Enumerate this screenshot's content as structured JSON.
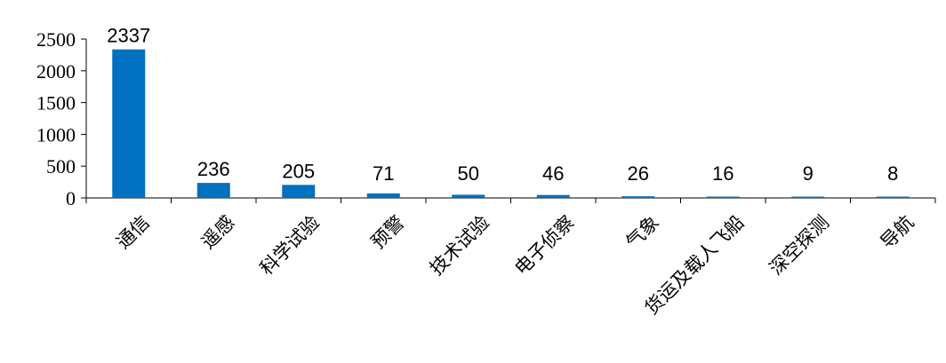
{
  "chart_data": {
    "type": "bar",
    "categories": [
      "通信",
      "遥感",
      "科学试验",
      "预警",
      "技术试验",
      "电子侦察",
      "气象",
      "货运及载人飞船",
      "深空探测",
      "导航"
    ],
    "values": [
      2337,
      236,
      205,
      71,
      50,
      46,
      26,
      16,
      9,
      8
    ],
    "ylim": [
      0,
      2500
    ],
    "yticks": [
      "0",
      "500",
      "1000",
      "1500",
      "2000",
      "2500"
    ],
    "bar_color": "#0070C0",
    "axis_color": "#000000",
    "grid": false,
    "legend": "none"
  }
}
